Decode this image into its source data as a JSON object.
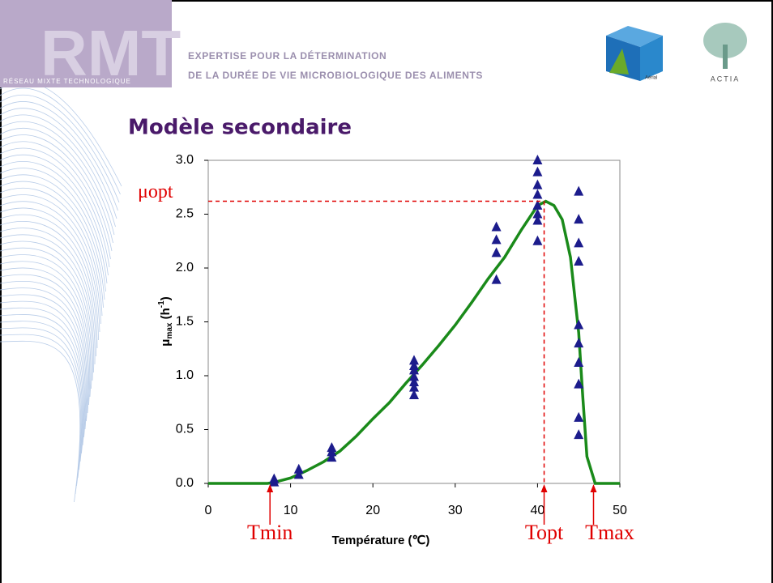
{
  "header": {
    "logo": "RMT",
    "network": "RÉSEAU MIXTE TECHNOLOGIQUE",
    "line1": "EXPERTISE POUR LA DÉTERMINATION",
    "line2": "DE LA DURÉE DE VIE MICROBIOLOGIQUE DES ALIMENTS",
    "partner1": "Aérial",
    "partner2": "ACTIA"
  },
  "chart_data": {
    "type": "scatter",
    "title": "Modèle secondaire",
    "x_label": "Température (℃)",
    "y_label": {
      "main": "μ",
      "sub": "max",
      "mid": " (h",
      "sup": "-1",
      "end": ")"
    },
    "xlim": [
      0,
      50
    ],
    "xticks": [
      0,
      10,
      20,
      30,
      40,
      50
    ],
    "ylim": [
      0,
      3
    ],
    "yticks": [
      {
        "value": 0,
        "label": "0.0"
      },
      0.5,
      {
        "value": 1,
        "label": "1.0"
      },
      1.5,
      {
        "value": 2,
        "label": "2.0"
      },
      2.5,
      {
        "value": 3,
        "label": "3.0"
      }
    ],
    "series": [
      {
        "kind": "scatter",
        "marker": "triangle",
        "color": "#1c1c8c",
        "x": [
          8,
          8,
          11,
          11,
          15,
          15,
          15,
          25,
          25,
          25,
          25,
          25,
          25,
          25,
          35,
          35,
          35,
          35,
          40,
          40,
          40,
          40,
          40,
          40,
          40,
          40,
          45,
          45,
          45,
          45,
          45,
          45,
          45,
          45,
          45,
          45
        ],
        "values": [
          0.04,
          0.01,
          0.13,
          0.08,
          0.33,
          0.29,
          0.24,
          1.14,
          1.09,
          1.05,
          0.99,
          0.94,
          0.89,
          0.82,
          2.38,
          2.26,
          2.14,
          1.89,
          3.0,
          2.89,
          2.77,
          2.68,
          2.58,
          2.5,
          2.44,
          2.25,
          2.71,
          2.45,
          2.23,
          2.06,
          1.47,
          1.3,
          1.12,
          0.92,
          0.61,
          0.45
        ]
      },
      {
        "kind": "line",
        "color": "#1a8a1a",
        "x": [
          0,
          7.2,
          8,
          10,
          12,
          14,
          16,
          18,
          20,
          22,
          24,
          26,
          28,
          30,
          32,
          34,
          36,
          38,
          40,
          41,
          42,
          43,
          44,
          45,
          45.5,
          46,
          47,
          50
        ],
        "values": [
          0,
          0,
          0.01,
          0.05,
          0.12,
          0.2,
          0.3,
          0.44,
          0.6,
          0.75,
          0.93,
          1.1,
          1.28,
          1.47,
          1.68,
          1.9,
          2.1,
          2.35,
          2.58,
          2.62,
          2.58,
          2.45,
          2.1,
          1.4,
          0.8,
          0.25,
          0,
          0
        ]
      }
    ],
    "annotation_color": "#e00000",
    "hline": {
      "text": "μopt",
      "y": 2.62,
      "x": 40.8
    },
    "annotations": [
      {
        "text": "Tmin",
        "x": 7.5
      },
      {
        "text": "Topt",
        "x": 40.8
      },
      {
        "text": "Tmax",
        "x": 46.8
      }
    ]
  }
}
